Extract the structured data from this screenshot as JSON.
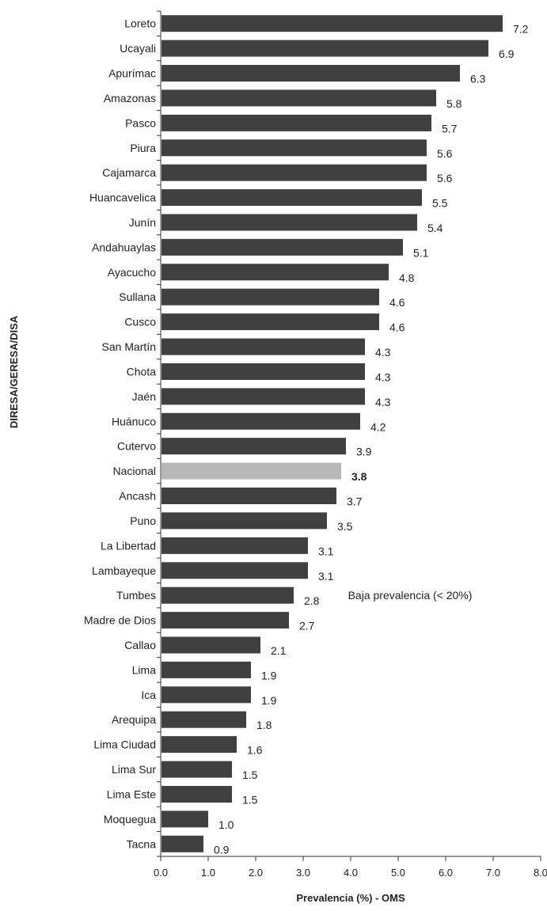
{
  "chart_data": {
    "type": "bar",
    "orientation": "horizontal",
    "categories": [
      "Loreto",
      "Ucayali",
      "Apurímac",
      "Amazonas",
      "Pasco",
      "Piura",
      "Cajamarca",
      "Huancavelica",
      "Junín",
      "Andahuaylas",
      "Ayacucho",
      "Sullana",
      "Cusco",
      "San Martín",
      "Chota",
      "Jaén",
      "Huánuco",
      "Cutervo",
      "Nacional",
      "Ancash",
      "Puno",
      "La Libertad",
      "Lambayeque",
      "Tumbes",
      "Madre de Dios",
      "Callao",
      "Lima",
      "Ica",
      "Arequipa",
      "Lima Ciudad",
      "Lima Sur",
      "Lima Este",
      "Moquegua",
      "Tacna"
    ],
    "values": [
      7.2,
      6.9,
      6.3,
      5.8,
      5.7,
      5.6,
      5.6,
      5.5,
      5.4,
      5.1,
      4.8,
      4.6,
      4.6,
      4.3,
      4.3,
      4.3,
      4.2,
      3.9,
      3.8,
      3.7,
      3.5,
      3.1,
      3.1,
      2.8,
      2.7,
      2.1,
      1.9,
      1.9,
      1.8,
      1.6,
      1.5,
      1.5,
      1.0,
      0.9
    ],
    "value_labels": [
      "7.2",
      "6.9",
      "6.3",
      "5.8",
      "5.7",
      "5.6",
      "5.6",
      "5.5",
      "5.4",
      "5.1",
      "4.8",
      "4.6",
      "4.6",
      "4.3",
      "4.3",
      "4.3",
      "4.2",
      "3.9",
      "3.8",
      "3.7",
      "3.5",
      "3.1",
      "3.1",
      "2.8",
      "2.7",
      "2.1",
      "1.9",
      "1.9",
      "1.8",
      "1.6",
      "1.5",
      "1.5",
      "1.0",
      "0.9"
    ],
    "highlight_category": "Nacional",
    "xlabel": "Prevalencia (%) - OMS",
    "ylabel": "DIRESA/GERESA/DISA",
    "xlim": [
      0,
      8
    ],
    "xticks": [
      "0.0",
      "1.0",
      "2.0",
      "3.0",
      "4.0",
      "5.0",
      "6.0",
      "7.0",
      "8.0"
    ],
    "annotation": "Baja prevalencia (< 20%)",
    "grid": false,
    "colors": {
      "bar": "#404040",
      "highlight": "#b8b8b8",
      "axis": "#333333"
    }
  }
}
